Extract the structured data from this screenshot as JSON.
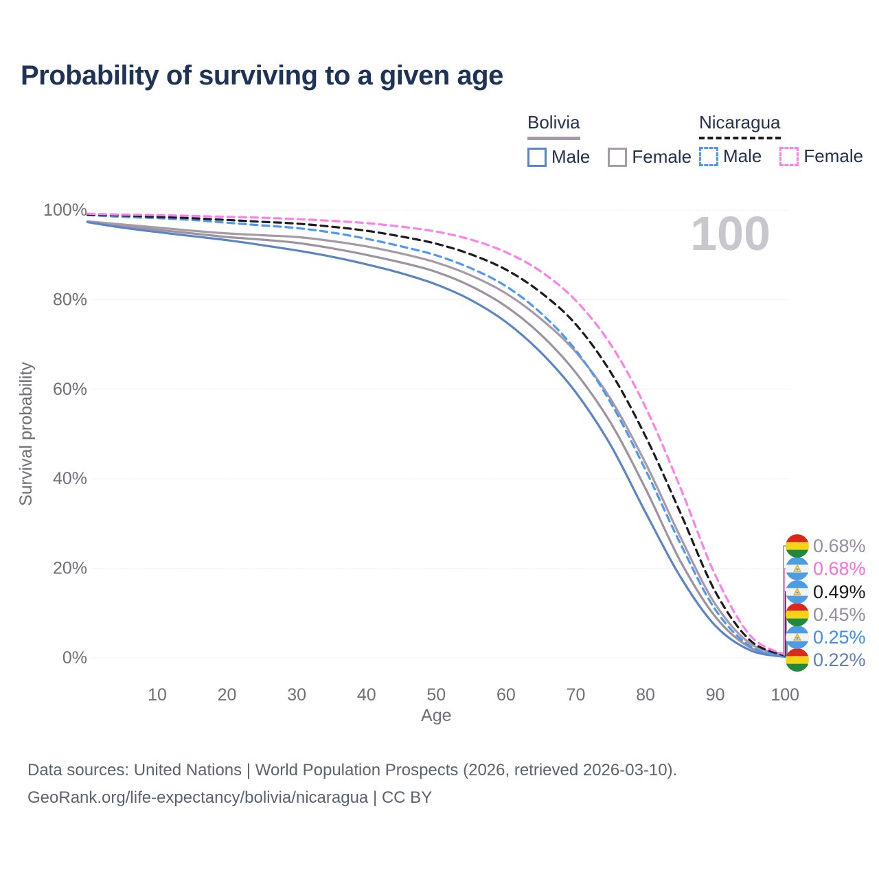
{
  "page": {
    "title": "Probability of surviving to a given age",
    "watermark_age": "100"
  },
  "legend": {
    "groups": [
      {
        "country": "Bolivia",
        "line_style": "solid",
        "line_color": "#a79aa8",
        "items": [
          {
            "label": "Male",
            "color": "#5b84c6",
            "dashed": false
          },
          {
            "label": "Female",
            "color": "#a79aa8",
            "dashed": false
          }
        ]
      },
      {
        "country": "Nicaragua",
        "line_style": "dashed",
        "line_color": "#1a1a1f",
        "items": [
          {
            "label": "Male",
            "color": "#4f98f1",
            "dashed": true
          },
          {
            "label": "Female",
            "color": "#fb80ea",
            "dashed": true
          }
        ]
      }
    ]
  },
  "chart_data": {
    "type": "line",
    "title": "Probability of surviving to a given age",
    "xlabel": "Age",
    "ylabel": "Survival probability",
    "xlim": [
      0,
      100
    ],
    "ylim": [
      0,
      100
    ],
    "grid": "horizontal-dotted",
    "legend_position": "top-right",
    "xticks": [
      10,
      20,
      30,
      40,
      50,
      60,
      70,
      80,
      90,
      100
    ],
    "xtick_labels": [
      "10",
      "20",
      "30",
      "40",
      "50",
      "60",
      "70",
      "80",
      "90",
      "100"
    ],
    "yticks": [
      0,
      20,
      40,
      60,
      80,
      100
    ],
    "ytick_labels": [
      "0%",
      "20%",
      "40%",
      "60%",
      "80%",
      "100%"
    ],
    "watermark": "100",
    "ages": [
      0,
      5,
      10,
      15,
      20,
      25,
      30,
      35,
      40,
      45,
      50,
      55,
      60,
      65,
      70,
      75,
      80,
      85,
      90,
      95,
      100
    ],
    "series": [
      {
        "name": "Bolivia (all)",
        "country": "Bolivia",
        "sex": "all",
        "color": "#9c92a1",
        "dash": false,
        "flag": "bolivia",
        "end_label": "0.45%",
        "end_label_color": "#968ba1",
        "label_row": 3,
        "values": [
          97.4,
          96.5,
          95.6,
          94.8,
          94.0,
          93.4,
          92.7,
          91.5,
          90.0,
          88.3,
          86.2,
          83.0,
          78.5,
          72.2,
          63.7,
          52.5,
          37.8,
          21.6,
          9.2,
          2.3,
          0.45
        ]
      },
      {
        "name": "Bolivia Female",
        "country": "Bolivia",
        "sex": "female",
        "color": "#a79aa8",
        "dash": false,
        "flag": "bolivia",
        "end_label": "0.68%",
        "end_label_color": "#968ba1",
        "label_row": 0,
        "values": [
          97.5,
          96.8,
          96.1,
          95.4,
          94.8,
          94.4,
          94.0,
          93.1,
          91.9,
          90.3,
          88.3,
          85.4,
          81.4,
          75.7,
          68.3,
          57.8,
          43.5,
          27.0,
          12.0,
          3.2,
          0.68
        ]
      },
      {
        "name": "Bolivia Male",
        "country": "Bolivia",
        "sex": "male",
        "color": "#5b84c6",
        "dash": false,
        "flag": "bolivia",
        "end_label": "0.22%",
        "end_label_color": "#5c7cbe",
        "label_row": 5,
        "values": [
          97.3,
          96.1,
          95.1,
          94.2,
          93.3,
          92.2,
          91.0,
          89.6,
          87.9,
          85.9,
          83.4,
          79.9,
          75.0,
          68.2,
          59.3,
          47.5,
          32.5,
          18.1,
          7.2,
          1.7,
          0.22
        ]
      },
      {
        "name": "Nicaragua Male",
        "country": "Nicaragua",
        "sex": "male",
        "color": "#4f98f1",
        "dash": true,
        "flag": "nicaragua",
        "end_label": "0.25%",
        "end_label_color": "#3d8ded",
        "label_row": 4,
        "values": [
          98.9,
          98.5,
          98.2,
          97.8,
          97.2,
          96.6,
          96.0,
          95.0,
          93.6,
          91.9,
          89.9,
          87.0,
          83.0,
          77.0,
          68.7,
          57.0,
          42.0,
          25.5,
          10.8,
          2.6,
          0.25
        ]
      },
      {
        "name": "Nicaragua (all)",
        "country": "Nicaragua",
        "sex": "all",
        "color": "#1b1b20",
        "dash": true,
        "flag": "nicaragua",
        "end_label": "0.49%",
        "end_label_color": "#17171c",
        "label_row": 2,
        "values": [
          99.0,
          98.8,
          98.5,
          98.2,
          97.8,
          97.4,
          97.0,
          96.3,
          95.4,
          94.1,
          92.5,
          90.1,
          86.7,
          81.6,
          74.5,
          63.8,
          49.5,
          32.4,
          14.8,
          3.9,
          0.49
        ]
      },
      {
        "name": "Nicaragua Female",
        "country": "Nicaragua",
        "sex": "female",
        "color": "#fb80ea",
        "dash": true,
        "flag": "nicaragua",
        "end_label": "0.68%",
        "end_label_color": "#fb6ee5",
        "label_row": 1,
        "values": [
          99.2,
          99.0,
          98.9,
          98.7,
          98.5,
          98.3,
          98.0,
          97.6,
          97.1,
          96.3,
          95.2,
          93.4,
          90.6,
          86.3,
          79.8,
          70.0,
          56.0,
          38.0,
          18.5,
          5.0,
          0.68
        ]
      }
    ],
    "flag_colors": {
      "bolivia": {
        "top": "#da291c",
        "middle": "#f5d317",
        "bottom": "#1f8a3c"
      },
      "nicaragua": {
        "top": "#4d9de4",
        "middle": "#f2f3f5",
        "bottom": "#4d9de4",
        "emblem": "#e8b323"
      }
    }
  },
  "footer": {
    "line1": "Data sources: United Nations | World Population Prospects (2026, retrieved 2026-03-10).",
    "line2": "GeoRank.org/life-expectancy/bolivia/nicaragua | CC BY"
  }
}
